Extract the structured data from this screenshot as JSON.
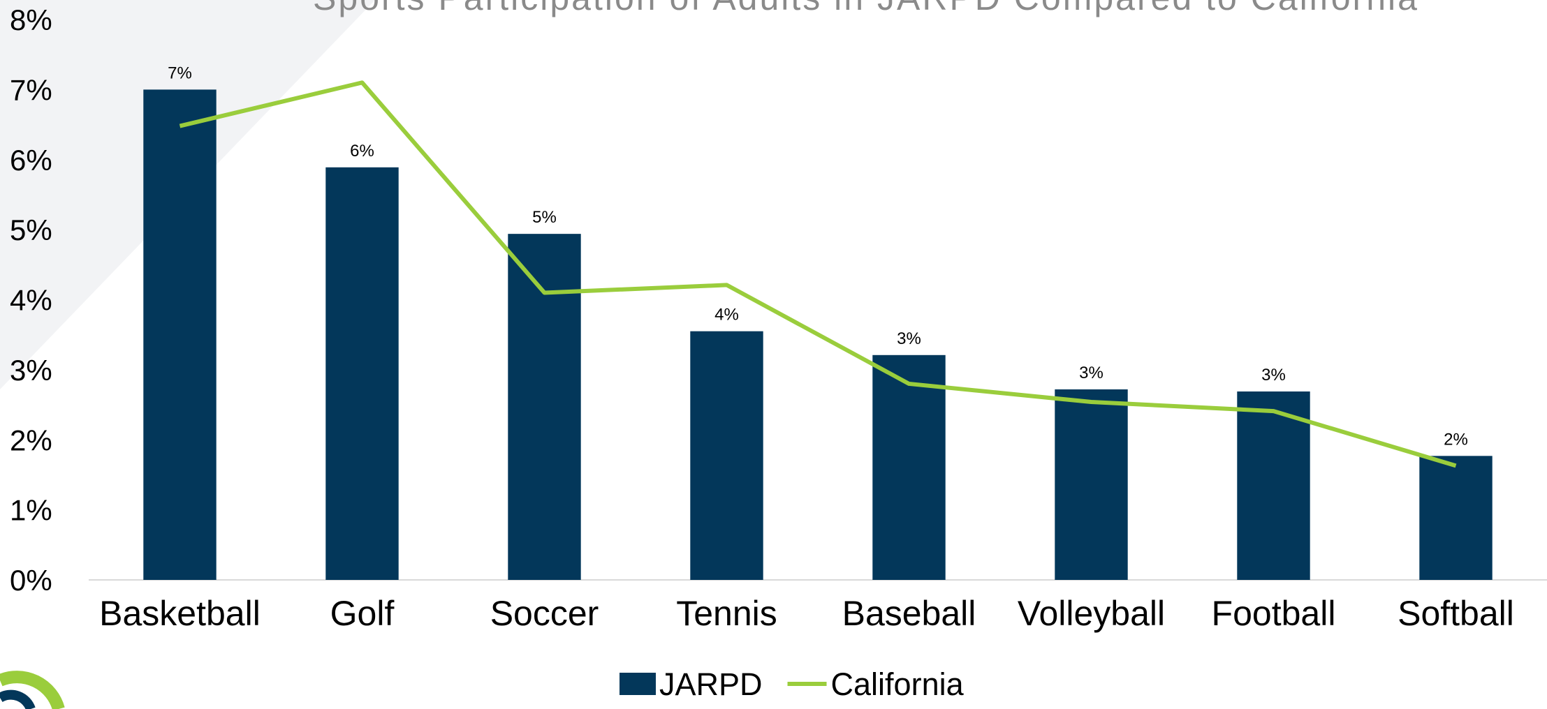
{
  "chart_data": {
    "type": "bar_line",
    "title": "Sports Participation of Adults in JARPD Compared to California",
    "categories": [
      "Basketball",
      "Golf",
      "Soccer",
      "Tennis",
      "Baseball",
      "Volleyball",
      "Football",
      "Softball"
    ],
    "series": [
      {
        "name": "JARPD",
        "type": "bar",
        "color": "#03375a",
        "values": [
          7.0,
          5.89,
          4.94,
          3.55,
          3.21,
          2.72,
          2.69,
          1.77
        ],
        "value_labels": [
          "7%",
          "6%",
          "5%",
          "4%",
          "3%",
          "3%",
          "3%",
          "2%"
        ]
      },
      {
        "name": "California",
        "type": "line",
        "color": "#9acd3c",
        "values": [
          6.48,
          7.1,
          4.1,
          4.21,
          2.8,
          2.54,
          2.41,
          1.63
        ]
      }
    ],
    "ylim": [
      0,
      8
    ],
    "yticks": [
      {
        "value": 0,
        "label": "0%"
      },
      {
        "value": 1,
        "label": "1%"
      },
      {
        "value": 2,
        "label": "2%"
      },
      {
        "value": 3,
        "label": "3%"
      },
      {
        "value": 4,
        "label": "4%"
      },
      {
        "value": 5,
        "label": "5%"
      },
      {
        "value": 6,
        "label": "6%"
      },
      {
        "value": 7,
        "label": "7%"
      },
      {
        "value": 8,
        "label": "8%"
      }
    ],
    "grid": false,
    "legend": "bottom"
  }
}
